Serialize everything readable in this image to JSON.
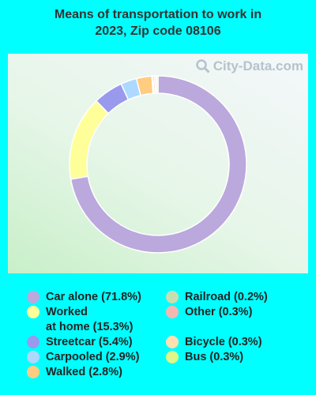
{
  "title_line1": "Means of transportation to work in",
  "title_line2": "2023, Zip code 08106",
  "watermark": "City-Data.com",
  "chart_data": {
    "type": "pie",
    "title": "Means of transportation to work in 2023, Zip code 08106",
    "donut": true,
    "series": [
      {
        "name": "Car alone",
        "value": 71.8,
        "label": "Car alone (71.8%)",
        "color": "#bba8dc"
      },
      {
        "name": "Worked at home",
        "value": 15.3,
        "label": "Worked\nat home (15.3%)",
        "color": "#ffff99"
      },
      {
        "name": "Streetcar",
        "value": 5.4,
        "label": "Streetcar (5.4%)",
        "color": "#9999ee"
      },
      {
        "name": "Carpooled",
        "value": 2.9,
        "label": "Carpooled (2.9%)",
        "color": "#add8ff"
      },
      {
        "name": "Walked",
        "value": 2.8,
        "label": "Walked (2.8%)",
        "color": "#ffcc80"
      },
      {
        "name": "Railroad",
        "value": 0.2,
        "label": "Railroad (0.2%)",
        "color": "#c7dfb0"
      },
      {
        "name": "Other",
        "value": 0.3,
        "label": "Other (0.3%)",
        "color": "#f2b8b0"
      },
      {
        "name": "Bicycle",
        "value": 0.3,
        "label": "Bicycle (0.3%)",
        "color": "#ffe0b0"
      },
      {
        "name": "Bus",
        "value": 0.3,
        "label": "Bus (0.3%)",
        "color": "#ddf788"
      }
    ]
  }
}
